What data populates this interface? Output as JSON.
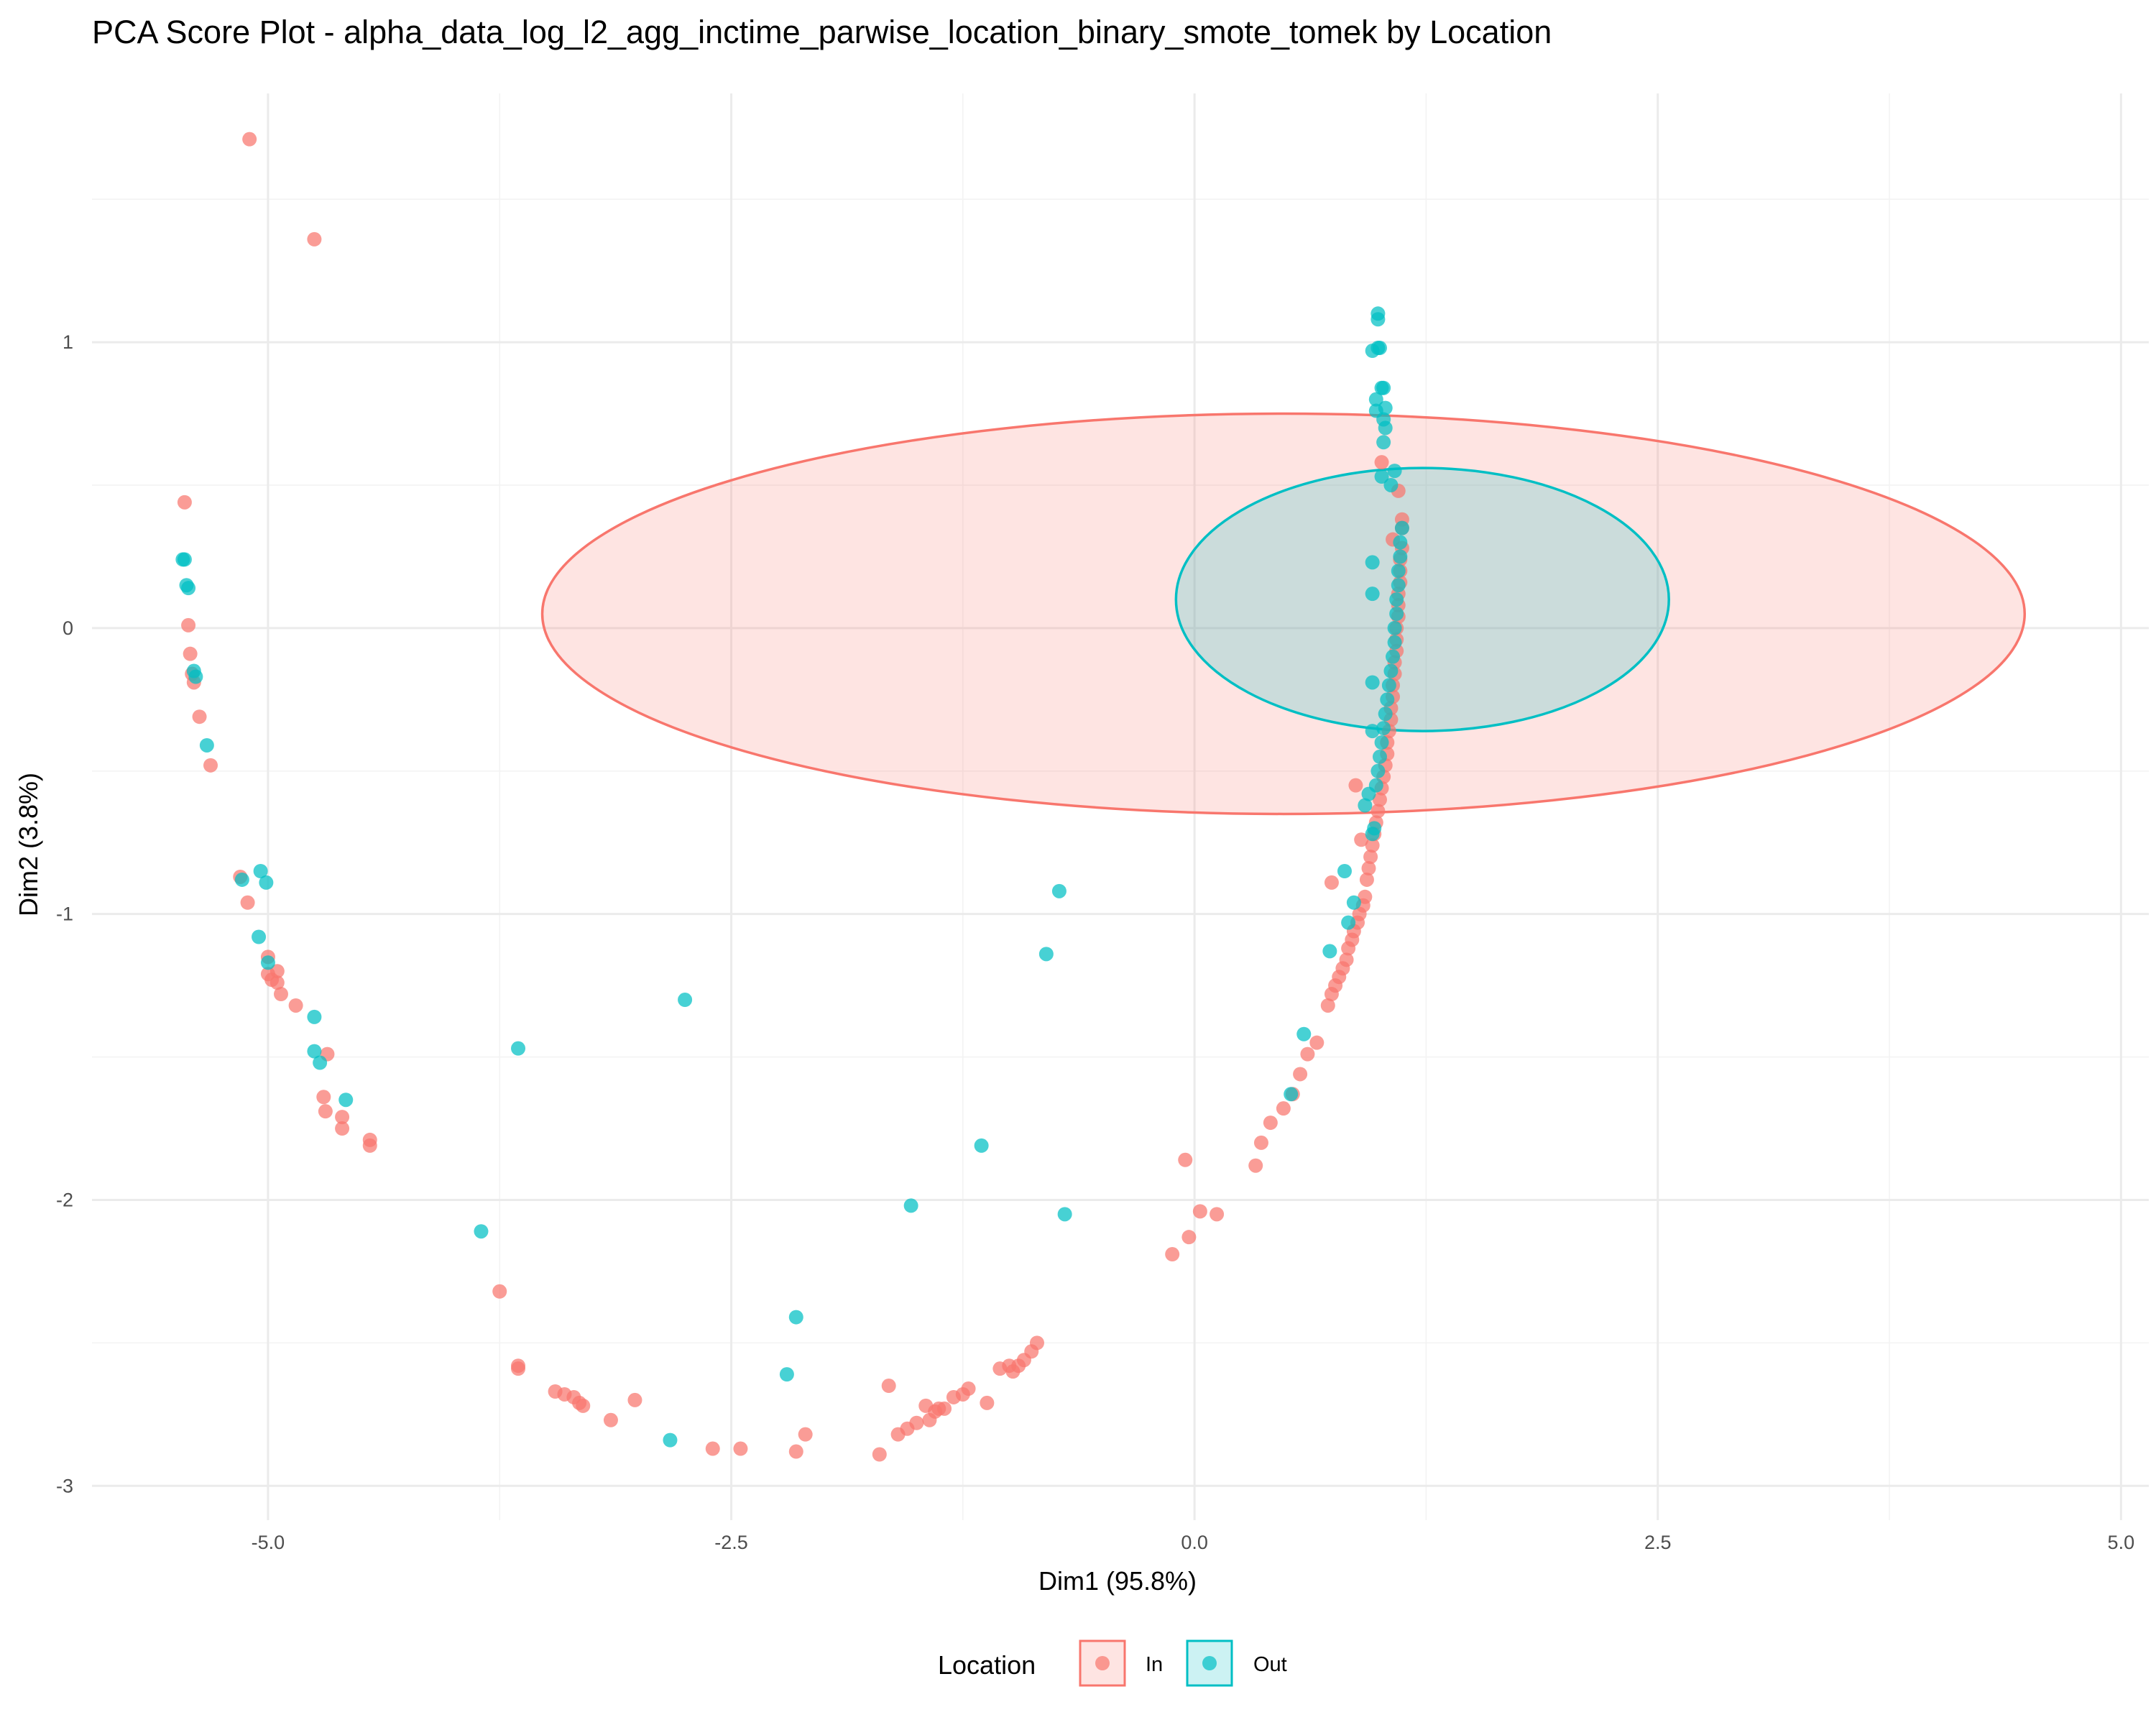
{
  "chart_data": {
    "type": "scatter",
    "title": "PCA Score Plot - alpha_data_log_l2_agg_inctime_parwise_location_binary_smote_tomek by Location",
    "xlabel": "Dim1 (95.8%)",
    "ylabel": "Dim2 (3.8%)",
    "xlim": [
      -5.95,
      5.15
    ],
    "ylim": [
      -3.12,
      1.87
    ],
    "x_ticks": [
      -5.0,
      -2.5,
      0.0,
      2.5,
      5.0
    ],
    "x_tick_labels": [
      "-5.0",
      "-2.5",
      "0.0",
      "2.5",
      "5.0"
    ],
    "y_ticks": [
      -3,
      -2,
      -1,
      0,
      1
    ],
    "y_tick_labels": [
      "-3",
      "-2",
      "-1",
      "0",
      "1"
    ],
    "grid": true,
    "legend": {
      "title": "Location",
      "position": "bottom"
    },
    "series": [
      {
        "name": "In",
        "color": "#F8766D",
        "ellipse": {
          "cx": 0.48,
          "cy": 0.05,
          "rx": 4.0,
          "ry": 0.7
        },
        "points": [
          [
            -5.1,
            1.71
          ],
          [
            -4.75,
            1.36
          ],
          [
            -5.45,
            0.44
          ],
          [
            -5.43,
            0.01
          ],
          [
            -5.42,
            -0.09
          ],
          [
            -5.41,
            -0.16
          ],
          [
            -5.4,
            -0.19
          ],
          [
            -5.37,
            -0.31
          ],
          [
            -5.31,
            -0.48
          ],
          [
            -5.15,
            -0.87
          ],
          [
            -5.11,
            -0.96
          ],
          [
            -5.0,
            -1.15
          ],
          [
            -5.0,
            -1.21
          ],
          [
            -4.98,
            -1.23
          ],
          [
            -4.95,
            -1.2
          ],
          [
            -4.95,
            -1.24
          ],
          [
            -4.93,
            -1.28
          ],
          [
            -4.85,
            -1.32
          ],
          [
            -4.68,
            -1.49
          ],
          [
            -4.7,
            -1.64
          ],
          [
            -4.69,
            -1.69
          ],
          [
            -4.6,
            -1.71
          ],
          [
            -4.6,
            -1.75
          ],
          [
            -4.45,
            -1.79
          ],
          [
            -4.45,
            -1.81
          ],
          [
            -3.75,
            -2.32
          ],
          [
            -3.65,
            -2.58
          ],
          [
            -3.65,
            -2.59
          ],
          [
            -3.45,
            -2.67
          ],
          [
            -3.4,
            -2.68
          ],
          [
            -3.35,
            -2.69
          ],
          [
            -3.32,
            -2.71
          ],
          [
            -3.3,
            -2.72
          ],
          [
            -3.15,
            -2.77
          ],
          [
            -3.02,
            -2.7
          ],
          [
            -2.6,
            -2.87
          ],
          [
            -2.45,
            -2.87
          ],
          [
            -2.15,
            -2.88
          ],
          [
            -2.1,
            -2.82
          ],
          [
            -1.7,
            -2.89
          ],
          [
            -1.65,
            -2.65
          ],
          [
            -1.6,
            -2.82
          ],
          [
            -1.55,
            -2.8
          ],
          [
            -1.5,
            -2.78
          ],
          [
            -1.45,
            -2.72
          ],
          [
            -1.43,
            -2.77
          ],
          [
            -1.4,
            -2.74
          ],
          [
            -1.38,
            -2.73
          ],
          [
            -1.35,
            -2.73
          ],
          [
            -1.3,
            -2.69
          ],
          [
            -1.25,
            -2.68
          ],
          [
            -1.22,
            -2.66
          ],
          [
            -1.12,
            -2.71
          ],
          [
            -1.05,
            -2.59
          ],
          [
            -1.0,
            -2.58
          ],
          [
            -0.98,
            -2.6
          ],
          [
            -0.95,
            -2.58
          ],
          [
            -0.92,
            -2.56
          ],
          [
            -0.88,
            -2.53
          ],
          [
            -0.85,
            -2.5
          ],
          [
            -0.12,
            -2.19
          ],
          [
            -0.03,
            -2.13
          ],
          [
            0.03,
            -2.04
          ],
          [
            0.12,
            -2.05
          ],
          [
            -0.05,
            -1.86
          ],
          [
            0.33,
            -1.88
          ],
          [
            0.36,
            -1.8
          ],
          [
            0.41,
            -1.73
          ],
          [
            0.48,
            -1.68
          ],
          [
            0.53,
            -1.63
          ],
          [
            0.57,
            -1.56
          ],
          [
            0.61,
            -1.49
          ],
          [
            0.66,
            -1.45
          ],
          [
            0.72,
            -1.32
          ],
          [
            0.74,
            -1.28
          ],
          [
            0.76,
            -1.25
          ],
          [
            0.78,
            -1.22
          ],
          [
            0.8,
            -1.19
          ],
          [
            0.82,
            -1.16
          ],
          [
            0.83,
            -1.12
          ],
          [
            0.85,
            -1.09
          ],
          [
            0.86,
            -1.06
          ],
          [
            0.88,
            -1.03
          ],
          [
            0.89,
            -1.0
          ],
          [
            0.91,
            -0.97
          ],
          [
            0.92,
            -0.94
          ],
          [
            0.74,
            -0.89
          ],
          [
            0.93,
            -0.88
          ],
          [
            0.94,
            -0.84
          ],
          [
            0.95,
            -0.8
          ],
          [
            0.96,
            -0.76
          ],
          [
            0.97,
            -0.72
          ],
          [
            0.9,
            -0.74
          ],
          [
            0.98,
            -0.68
          ],
          [
            0.99,
            -0.64
          ],
          [
            1.0,
            -0.6
          ],
          [
            0.87,
            -0.55
          ],
          [
            1.01,
            -0.56
          ],
          [
            1.02,
            -0.52
          ],
          [
            1.03,
            -0.48
          ],
          [
            1.04,
            -0.44
          ],
          [
            1.04,
            -0.4
          ],
          [
            1.05,
            -0.36
          ],
          [
            1.06,
            -0.32
          ],
          [
            1.06,
            -0.28
          ],
          [
            1.07,
            -0.24
          ],
          [
            1.07,
            -0.2
          ],
          [
            1.08,
            -0.16
          ],
          [
            1.08,
            -0.12
          ],
          [
            1.09,
            -0.08
          ],
          [
            1.09,
            -0.04
          ],
          [
            1.09,
            0.0
          ],
          [
            1.1,
            0.04
          ],
          [
            1.1,
            0.08
          ],
          [
            1.1,
            0.12
          ],
          [
            1.11,
            0.16
          ],
          [
            1.11,
            0.2
          ],
          [
            1.11,
            0.24
          ],
          [
            1.12,
            0.28
          ],
          [
            1.07,
            0.31
          ],
          [
            1.12,
            0.35
          ],
          [
            1.12,
            0.38
          ],
          [
            1.1,
            0.48
          ],
          [
            1.01,
            0.58
          ]
        ]
      },
      {
        "name": "Out",
        "color": "#00BFC4",
        "ellipse": {
          "cx": 1.23,
          "cy": 0.1,
          "rx": 1.33,
          "ry": 0.46
        },
        "points": [
          [
            -5.46,
            0.24
          ],
          [
            -5.45,
            0.24
          ],
          [
            -5.44,
            0.15
          ],
          [
            -5.43,
            0.14
          ],
          [
            -5.4,
            -0.15
          ],
          [
            -5.39,
            -0.17
          ],
          [
            -5.33,
            -0.41
          ],
          [
            -5.04,
            -0.85
          ],
          [
            -5.14,
            -0.88
          ],
          [
            -5.01,
            -0.89
          ],
          [
            -5.05,
            -1.08
          ],
          [
            -5.0,
            -1.17
          ],
          [
            -4.75,
            -1.36
          ],
          [
            -4.75,
            -1.48
          ],
          [
            -4.72,
            -1.52
          ],
          [
            -4.58,
            -1.65
          ],
          [
            -3.65,
            -1.47
          ],
          [
            -3.85,
            -2.11
          ],
          [
            -2.75,
            -1.3
          ],
          [
            -2.83,
            -2.84
          ],
          [
            -2.2,
            -2.61
          ],
          [
            -2.15,
            -2.41
          ],
          [
            -1.53,
            -2.02
          ],
          [
            -1.15,
            -1.81
          ],
          [
            -0.8,
            -1.14
          ],
          [
            -0.73,
            -0.92
          ],
          [
            -0.7,
            -2.05
          ],
          [
            0.59,
            -1.42
          ],
          [
            0.52,
            -1.63
          ],
          [
            0.73,
            -1.13
          ],
          [
            0.81,
            -0.85
          ],
          [
            0.83,
            -1.03
          ],
          [
            0.86,
            -0.96
          ],
          [
            0.92,
            -0.62
          ],
          [
            0.94,
            -0.58
          ],
          [
            0.96,
            -0.72
          ],
          [
            0.97,
            -0.7
          ],
          [
            0.98,
            -0.55
          ],
          [
            0.99,
            -0.5
          ],
          [
            1.0,
            -0.45
          ],
          [
            0.96,
            -0.36
          ],
          [
            0.96,
            -0.19
          ],
          [
            1.01,
            -0.4
          ],
          [
            1.02,
            -0.35
          ],
          [
            1.03,
            -0.3
          ],
          [
            1.04,
            -0.25
          ],
          [
            1.05,
            -0.2
          ],
          [
            1.06,
            -0.15
          ],
          [
            1.07,
            -0.1
          ],
          [
            1.08,
            -0.05
          ],
          [
            1.08,
            0.0
          ],
          [
            1.09,
            0.05
          ],
          [
            0.96,
            0.12
          ],
          [
            1.09,
            0.1
          ],
          [
            1.1,
            0.15
          ],
          [
            0.96,
            0.23
          ],
          [
            1.1,
            0.2
          ],
          [
            1.11,
            0.25
          ],
          [
            1.11,
            0.3
          ],
          [
            1.12,
            0.35
          ],
          [
            1.06,
            0.5
          ],
          [
            1.01,
            0.53
          ],
          [
            1.08,
            0.55
          ],
          [
            1.02,
            0.65
          ],
          [
            1.03,
            0.7
          ],
          [
            1.02,
            0.73
          ],
          [
            0.98,
            0.76
          ],
          [
            1.03,
            0.77
          ],
          [
            0.98,
            0.8
          ],
          [
            1.01,
            0.84
          ],
          [
            1.02,
            0.84
          ],
          [
            0.96,
            0.97
          ],
          [
            0.99,
            0.98
          ],
          [
            1.0,
            0.98
          ],
          [
            0.99,
            1.08
          ],
          [
            0.99,
            1.1
          ]
        ]
      }
    ]
  }
}
